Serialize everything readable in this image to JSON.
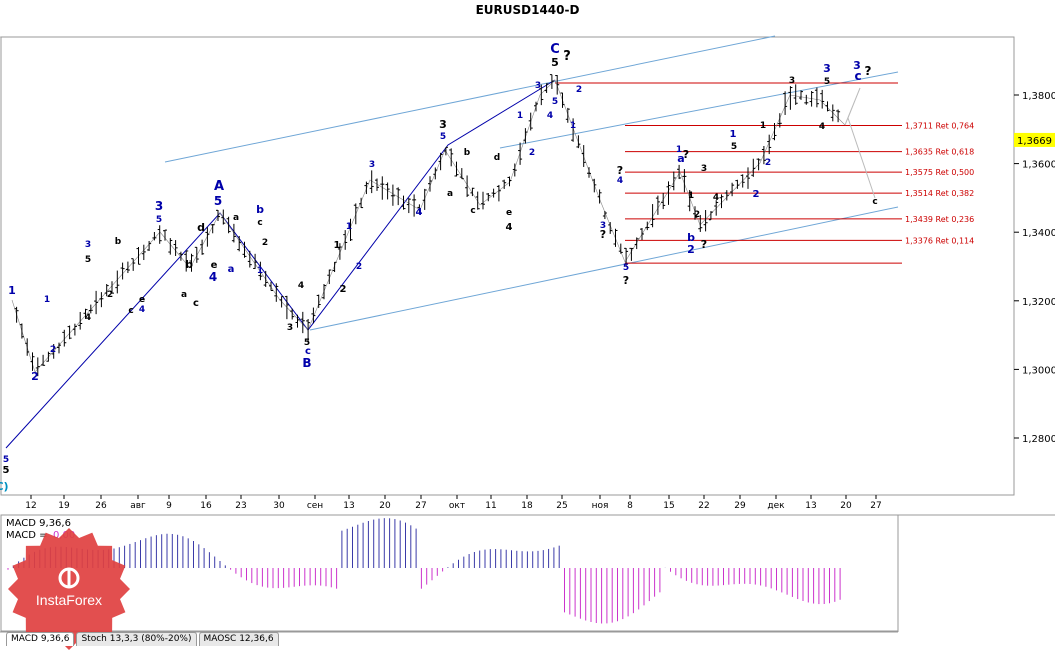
{
  "title": "EURUSD1440-D",
  "price_tag": "1,3669",
  "colors": {
    "bar": "#000000",
    "fib": "#cc0000",
    "channel": "#6fa6d6",
    "wave_blue": "#0000aa",
    "wave_dark": "#000000",
    "macd_pos": "#3a3aa8",
    "macd_neg": "#cc33cc",
    "price_tag_bg": "#ffff00"
  },
  "macd": {
    "label1": "MACD 9,36,6",
    "label2_prefix": "MACD =",
    "label2_value": "0,00"
  },
  "tabs": [
    "MACD 9,36,6",
    "Stoch 13,3,3 (80%-20%)",
    "MAOSC 12,36,6"
  ],
  "logo_text": "InstaForex",
  "chart_data": {
    "type": "candlestick",
    "title": "EURUSD1440-D",
    "x_tick_labels": [
      "12",
      "19",
      "26",
      "авг",
      "9",
      "16",
      "23",
      "30",
      "сен",
      "13",
      "20",
      "27",
      "окт",
      "11",
      "18",
      "25",
      "ноя",
      "8",
      "15",
      "22",
      "29",
      "дек",
      "13",
      "20",
      "27"
    ],
    "y_tick_labels": [
      "1,3800",
      "1,3600",
      "1,3400",
      "1,3200",
      "1,3000",
      "1,2800"
    ],
    "y_ticks": [
      1.38,
      1.36,
      1.34,
      1.32,
      1.3,
      1.28
    ],
    "ylim": [
      1.2625,
      1.3935
    ],
    "current_price": 1.3669,
    "fibonacci_levels": [
      {
        "price": 1.3711,
        "label": "1,3711 Ret 0,764"
      },
      {
        "price": 1.3635,
        "label": "1,3635 Ret 0,618"
      },
      {
        "price": 1.3575,
        "label": "1,3575 Ret 0,500"
      },
      {
        "price": 1.3514,
        "label": "1,3514 Ret 0,382"
      },
      {
        "price": 1.3439,
        "label": "1,3439 Ret 0,236"
      },
      {
        "price": 1.3376,
        "label": "1,3376 Ret 0,114"
      }
    ],
    "swing_points": [
      {
        "label": "5 / C)",
        "price": 1.276
      },
      {
        "label": "1",
        "price": 1.321
      },
      {
        "label": "2",
        "price": 1.301
      },
      {
        "label": "A 5",
        "price": 1.3445
      },
      {
        "label": "B",
        "price": 1.311
      },
      {
        "label": "C 5",
        "price": 1.3835
      },
      {
        "label": "5 ?",
        "price": 1.331
      },
      {
        "label": "3",
        "price": 1.381
      },
      {
        "label": "3 c ?",
        "price": 1.3835
      }
    ],
    "wave_labels": [
      "C",
      "5",
      "?",
      "A",
      "5",
      "4",
      "B",
      "c",
      "3",
      "5",
      "1",
      "2",
      "a",
      "b",
      "e",
      "d",
      "4",
      "?",
      "2"
    ],
    "indicators": [
      "MACD 9,36,6",
      "Stoch 13,3,3 (80%-20%)",
      "MAOSC 12,36,6"
    ]
  }
}
